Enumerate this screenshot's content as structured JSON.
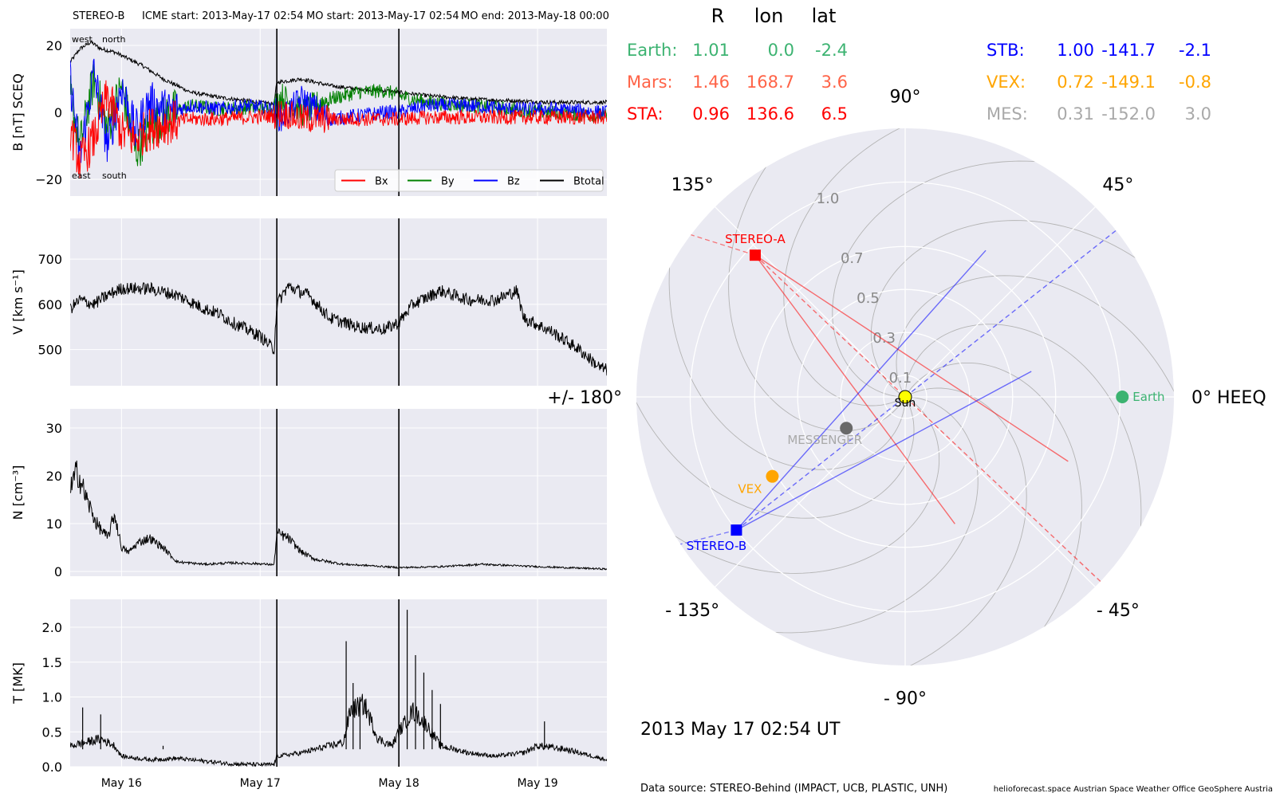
{
  "header": {
    "spacecraft": "STEREO-B",
    "icme_start": "ICME start: 2013-May-17 02:54",
    "mo_start": "MO start: 2013-May-17 02:54",
    "mo_end": "MO end: 2013-May-18 00:00"
  },
  "footer": {
    "data_source": "Data source: STEREO-Behind (IMPACT, UCB, PLASTIC, UNH)",
    "credits": "helioforecast.space   Austrian Space Weather Office   GeoSphere Austria"
  },
  "colors": {
    "panel_bg": "#eaeaf2",
    "grid": "#ffffff",
    "bx": "#ff0000",
    "by": "#008000",
    "bz": "#0000ff",
    "btotal": "#000000",
    "earth": "#3cb371",
    "mars": "#ff6347",
    "sta": "#ff0000",
    "stb": "#0000ff",
    "vex": "#ffa500",
    "mes": "#a9a9a9",
    "sun": "#ffff00",
    "messenger_dot": "#696969"
  },
  "chart_data": [
    {
      "type": "line",
      "panel": "magnetic field",
      "ylabel": "B [nT] SCEQ",
      "ylim": [
        -25,
        25
      ],
      "yticks": [
        -20,
        0,
        20
      ],
      "ytick_labels": [
        "−20",
        "0",
        "20"
      ],
      "xlim": [
        15.63,
        19.5
      ],
      "x_unit": "days of 2013 May (UT)",
      "annotations": {
        "top_left": "west",
        "top_right": "north",
        "bottom_left": "east",
        "bottom_right": "south"
      },
      "legend": {
        "placement": "lower-right",
        "entries": [
          "Bx",
          "By",
          "Bz",
          "Btotal"
        ]
      },
      "event_lines": [
        17.12,
        18.0
      ],
      "series": [
        {
          "name": "Btotal",
          "color": "#000000",
          "points": [
            [
              15.63,
              15
            ],
            [
              15.7,
              19
            ],
            [
              15.78,
              21
            ],
            [
              15.85,
              19
            ],
            [
              15.95,
              18
            ],
            [
              16.05,
              16
            ],
            [
              16.15,
              14
            ],
            [
              16.3,
              10
            ],
            [
              16.5,
              6
            ],
            [
              16.7,
              4.5
            ],
            [
              16.9,
              3.5
            ],
            [
              17.1,
              2.5
            ],
            [
              17.12,
              9
            ],
            [
              17.3,
              10
            ],
            [
              17.5,
              8
            ],
            [
              17.7,
              7
            ],
            [
              17.9,
              6.5
            ],
            [
              18.0,
              6
            ],
            [
              18.2,
              5
            ],
            [
              18.5,
              4
            ],
            [
              18.8,
              3.5
            ],
            [
              19.1,
              3
            ],
            [
              19.5,
              3
            ]
          ]
        },
        {
          "name": "By",
          "color": "#008000",
          "points": [
            [
              15.63,
              5
            ],
            [
              15.7,
              -10
            ],
            [
              15.8,
              10
            ],
            [
              15.9,
              -5
            ],
            [
              16.0,
              8
            ],
            [
              16.1,
              -12
            ],
            [
              16.2,
              -5
            ],
            [
              16.35,
              0
            ],
            [
              16.5,
              2
            ],
            [
              16.7,
              1
            ],
            [
              16.9,
              1.5
            ],
            [
              17.1,
              1
            ],
            [
              17.15,
              5
            ],
            [
              17.3,
              0
            ],
            [
              17.5,
              4
            ],
            [
              17.7,
              6
            ],
            [
              17.9,
              6.5
            ],
            [
              18.0,
              5
            ],
            [
              18.2,
              3
            ],
            [
              18.5,
              2
            ],
            [
              18.8,
              1
            ],
            [
              19.1,
              0
            ],
            [
              19.5,
              -1
            ]
          ]
        },
        {
          "name": "Bz",
          "color": "#0000ff",
          "points": [
            [
              15.63,
              10
            ],
            [
              15.7,
              -14
            ],
            [
              15.8,
              12
            ],
            [
              15.9,
              -10
            ],
            [
              16.0,
              8
            ],
            [
              16.1,
              -6
            ],
            [
              16.2,
              3
            ],
            [
              16.35,
              0
            ],
            [
              16.5,
              2
            ],
            [
              16.7,
              1
            ],
            [
              16.9,
              2
            ],
            [
              17.1,
              1
            ],
            [
              17.15,
              -2
            ],
            [
              17.3,
              4
            ],
            [
              17.5,
              -2
            ],
            [
              17.7,
              -1
            ],
            [
              17.9,
              0
            ],
            [
              18.0,
              0
            ],
            [
              18.2,
              2
            ],
            [
              18.5,
              2
            ],
            [
              18.8,
              1
            ],
            [
              19.1,
              1
            ],
            [
              19.5,
              0
            ]
          ]
        },
        {
          "name": "Bx",
          "color": "#ff0000",
          "points": [
            [
              15.63,
              -5
            ],
            [
              15.7,
              -15
            ],
            [
              15.8,
              -8
            ],
            [
              15.9,
              5
            ],
            [
              16.0,
              -6
            ],
            [
              16.1,
              -8
            ],
            [
              16.2,
              -5
            ],
            [
              16.35,
              -3
            ],
            [
              16.5,
              -2
            ],
            [
              16.7,
              -2
            ],
            [
              16.9,
              -1.5
            ],
            [
              17.1,
              -1
            ],
            [
              17.15,
              0
            ],
            [
              17.3,
              -2
            ],
            [
              17.5,
              -2
            ],
            [
              17.7,
              -2
            ],
            [
              17.9,
              -2
            ],
            [
              18.0,
              -2
            ],
            [
              18.2,
              -1.5
            ],
            [
              18.5,
              -1.5
            ],
            [
              18.8,
              -1.5
            ],
            [
              19.1,
              -1.5
            ],
            [
              19.5,
              -1.5
            ]
          ]
        }
      ]
    },
    {
      "type": "line",
      "panel": "speed",
      "ylabel": "V [km s⁻¹]",
      "ylim": [
        420,
        790
      ],
      "yticks": [
        500,
        600,
        700
      ],
      "ytick_labels": [
        "500",
        "600",
        "700"
      ],
      "xlim": [
        15.63,
        19.5
      ],
      "event_lines": [
        17.12,
        18.0
      ],
      "series": [
        {
          "name": "V",
          "color": "#000000",
          "points": [
            [
              15.63,
              590
            ],
            [
              15.7,
              610
            ],
            [
              15.8,
              600
            ],
            [
              15.9,
              620
            ],
            [
              16.0,
              635
            ],
            [
              16.2,
              635
            ],
            [
              16.4,
              620
            ],
            [
              16.6,
              590
            ],
            [
              16.7,
              580
            ],
            [
              16.8,
              560
            ],
            [
              17.0,
              530
            ],
            [
              17.1,
              500
            ],
            [
              17.12,
              600
            ],
            [
              17.2,
              640
            ],
            [
              17.35,
              620
            ],
            [
              17.5,
              570
            ],
            [
              17.7,
              550
            ],
            [
              17.9,
              545
            ],
            [
              18.0,
              560
            ],
            [
              18.1,
              600
            ],
            [
              18.3,
              630
            ],
            [
              18.5,
              610
            ],
            [
              18.7,
              610
            ],
            [
              18.85,
              630
            ],
            [
              18.9,
              570
            ],
            [
              19.1,
              540
            ],
            [
              19.3,
              500
            ],
            [
              19.45,
              460
            ],
            [
              19.5,
              455
            ]
          ]
        }
      ]
    },
    {
      "type": "line",
      "panel": "density",
      "ylabel": "N [cm⁻³]",
      "ylim": [
        -1,
        34
      ],
      "yticks": [
        0,
        10,
        20,
        30
      ],
      "ytick_labels": [
        "0",
        "10",
        "20",
        "30"
      ],
      "xlim": [
        15.63,
        19.5
      ],
      "event_lines": [
        17.12,
        18.0
      ],
      "series": [
        {
          "name": "N",
          "color": "#000000",
          "points": [
            [
              15.63,
              17
            ],
            [
              15.68,
              21
            ],
            [
              15.75,
              15
            ],
            [
              15.82,
              10
            ],
            [
              15.9,
              7
            ],
            [
              15.95,
              12
            ],
            [
              16.0,
              5
            ],
            [
              16.05,
              4
            ],
            [
              16.12,
              6
            ],
            [
              16.2,
              7
            ],
            [
              16.3,
              5
            ],
            [
              16.4,
              2
            ],
            [
              16.6,
              1.5
            ],
            [
              16.8,
              1.8
            ],
            [
              17.0,
              1.6
            ],
            [
              17.1,
              1.4
            ],
            [
              17.12,
              8
            ],
            [
              17.2,
              7
            ],
            [
              17.3,
              4
            ],
            [
              17.4,
              2.5
            ],
            [
              17.6,
              1.5
            ],
            [
              17.8,
              1.2
            ],
            [
              18.0,
              0.8
            ],
            [
              18.3,
              1
            ],
            [
              18.6,
              1.5
            ],
            [
              19.0,
              1
            ],
            [
              19.5,
              0.5
            ]
          ]
        }
      ]
    },
    {
      "type": "line",
      "panel": "temperature",
      "ylabel": "T [MK]",
      "ylim": [
        0,
        2.4
      ],
      "yticks": [
        0.0,
        0.5,
        1.0,
        1.5,
        2.0
      ],
      "ytick_labels": [
        "0.0",
        "0.5",
        "1.0",
        "1.5",
        "2.0"
      ],
      "xlim": [
        15.63,
        19.5
      ],
      "xticks": [
        16.0,
        17.0,
        18.0,
        19.0
      ],
      "xtick_labels": [
        "May 16",
        "May 17",
        "May 18",
        "May 19"
      ],
      "event_lines": [
        17.12,
        18.0
      ],
      "series": [
        {
          "name": "T",
          "color": "#000000",
          "points": [
            [
              15.63,
              0.3
            ],
            [
              15.75,
              0.35
            ],
            [
              15.85,
              0.4
            ],
            [
              15.95,
              0.3
            ],
            [
              16.0,
              0.15
            ],
            [
              16.2,
              0.1
            ],
            [
              16.4,
              0.12
            ],
            [
              16.6,
              0.08
            ],
            [
              16.8,
              0.04
            ],
            [
              17.0,
              0.03
            ],
            [
              17.1,
              0.03
            ],
            [
              17.12,
              0.15
            ],
            [
              17.3,
              0.2
            ],
            [
              17.5,
              0.3
            ],
            [
              17.6,
              0.35
            ],
            [
              17.65,
              0.8
            ],
            [
              17.75,
              0.9
            ],
            [
              17.85,
              0.4
            ],
            [
              17.95,
              0.3
            ],
            [
              18.0,
              0.5
            ],
            [
              18.1,
              0.8
            ],
            [
              18.2,
              0.6
            ],
            [
              18.3,
              0.3
            ],
            [
              18.5,
              0.2
            ],
            [
              18.7,
              0.15
            ],
            [
              18.9,
              0.2
            ],
            [
              19.0,
              0.3
            ],
            [
              19.2,
              0.25
            ],
            [
              19.5,
              0.1
            ]
          ]
        },
        {
          "name": "T spikes",
          "color": "#000000",
          "spikes": [
            [
              15.72,
              0.85
            ],
            [
              15.85,
              0.75
            ],
            [
              16.3,
              0.3
            ],
            [
              17.62,
              1.8
            ],
            [
              17.67,
              1.2
            ],
            [
              17.72,
              1.0
            ],
            [
              18.06,
              2.25
            ],
            [
              18.12,
              1.6
            ],
            [
              18.18,
              1.35
            ],
            [
              18.24,
              1.1
            ],
            [
              18.3,
              0.9
            ],
            [
              19.05,
              0.65
            ]
          ]
        }
      ]
    },
    {
      "type": "scatter",
      "panel": "position plot",
      "projection": "polar",
      "date_label": "2013 May 17  02:54 UT",
      "rlim": [
        0,
        1.25
      ],
      "r_rings": [
        0.1,
        0.3,
        0.5,
        0.7,
        1.0
      ],
      "r_ring_labels": [
        "0.1",
        "0.3",
        "0.5",
        "0.7",
        "1.0"
      ],
      "angle_labels": [
        {
          "deg": 0,
          "text": "0° HEEQ"
        },
        {
          "deg": 45,
          "text": "45°"
        },
        {
          "deg": 90,
          "text": "90°"
        },
        {
          "deg": 135,
          "text": "135°"
        },
        {
          "deg": 180,
          "text": "+/- 180°"
        },
        {
          "deg": -135,
          "text": "- 135°"
        },
        {
          "deg": -90,
          "text": "- 90°"
        },
        {
          "deg": -45,
          "text": "- 45°"
        }
      ],
      "bodies": [
        {
          "name": "Sun",
          "r": 0.0,
          "lon": 0.0,
          "marker": "circle",
          "color": "#ffff00",
          "label_color": "#000000"
        },
        {
          "name": "Earth",
          "r": 1.01,
          "lon": 0.0,
          "marker": "circle",
          "color": "#3cb371",
          "label_color": "#3cb371"
        },
        {
          "name": "STEREO-A",
          "r": 0.96,
          "lon": 136.6,
          "marker": "square",
          "color": "#ff0000",
          "label_color": "#ff0000"
        },
        {
          "name": "STEREO-B",
          "r": 1.0,
          "lon": -141.7,
          "marker": "square",
          "color": "#0000ff",
          "label_color": "#0000ff"
        },
        {
          "name": "VEX",
          "r": 0.72,
          "lon": -149.1,
          "marker": "circle",
          "color": "#ffa500",
          "label_color": "#ffa500"
        },
        {
          "name": "MESSENGER",
          "r": 0.31,
          "lon": -152.0,
          "marker": "circle",
          "color": "#696969",
          "label_color": "#a9a9a9"
        }
      ],
      "table": {
        "columns": [
          "R",
          "lon",
          "lat"
        ],
        "rows": [
          {
            "label": "Earth:",
            "R": "1.01",
            "lon": "0.0",
            "lat": "-2.4",
            "color": "#3cb371"
          },
          {
            "label": "Mars:",
            "R": "1.46",
            "lon": "168.7",
            "lat": "3.6",
            "color": "#ff6347"
          },
          {
            "label": "STA:",
            "R": "0.96",
            "lon": "136.6",
            "lat": "6.5",
            "color": "#ff0000"
          },
          {
            "label": "STB:",
            "R": "1.00",
            "lon": "-141.7",
            "lat": "-2.1",
            "color": "#0000ff"
          },
          {
            "label": "VEX:",
            "R": "0.72",
            "lon": "-149.1",
            "lat": "-0.8",
            "color": "#ffa500"
          },
          {
            "label": "MES:",
            "R": "0.31",
            "lon": "-152.0",
            "lat": "3.0",
            "color": "#a9a9a9"
          }
        ]
      }
    }
  ]
}
